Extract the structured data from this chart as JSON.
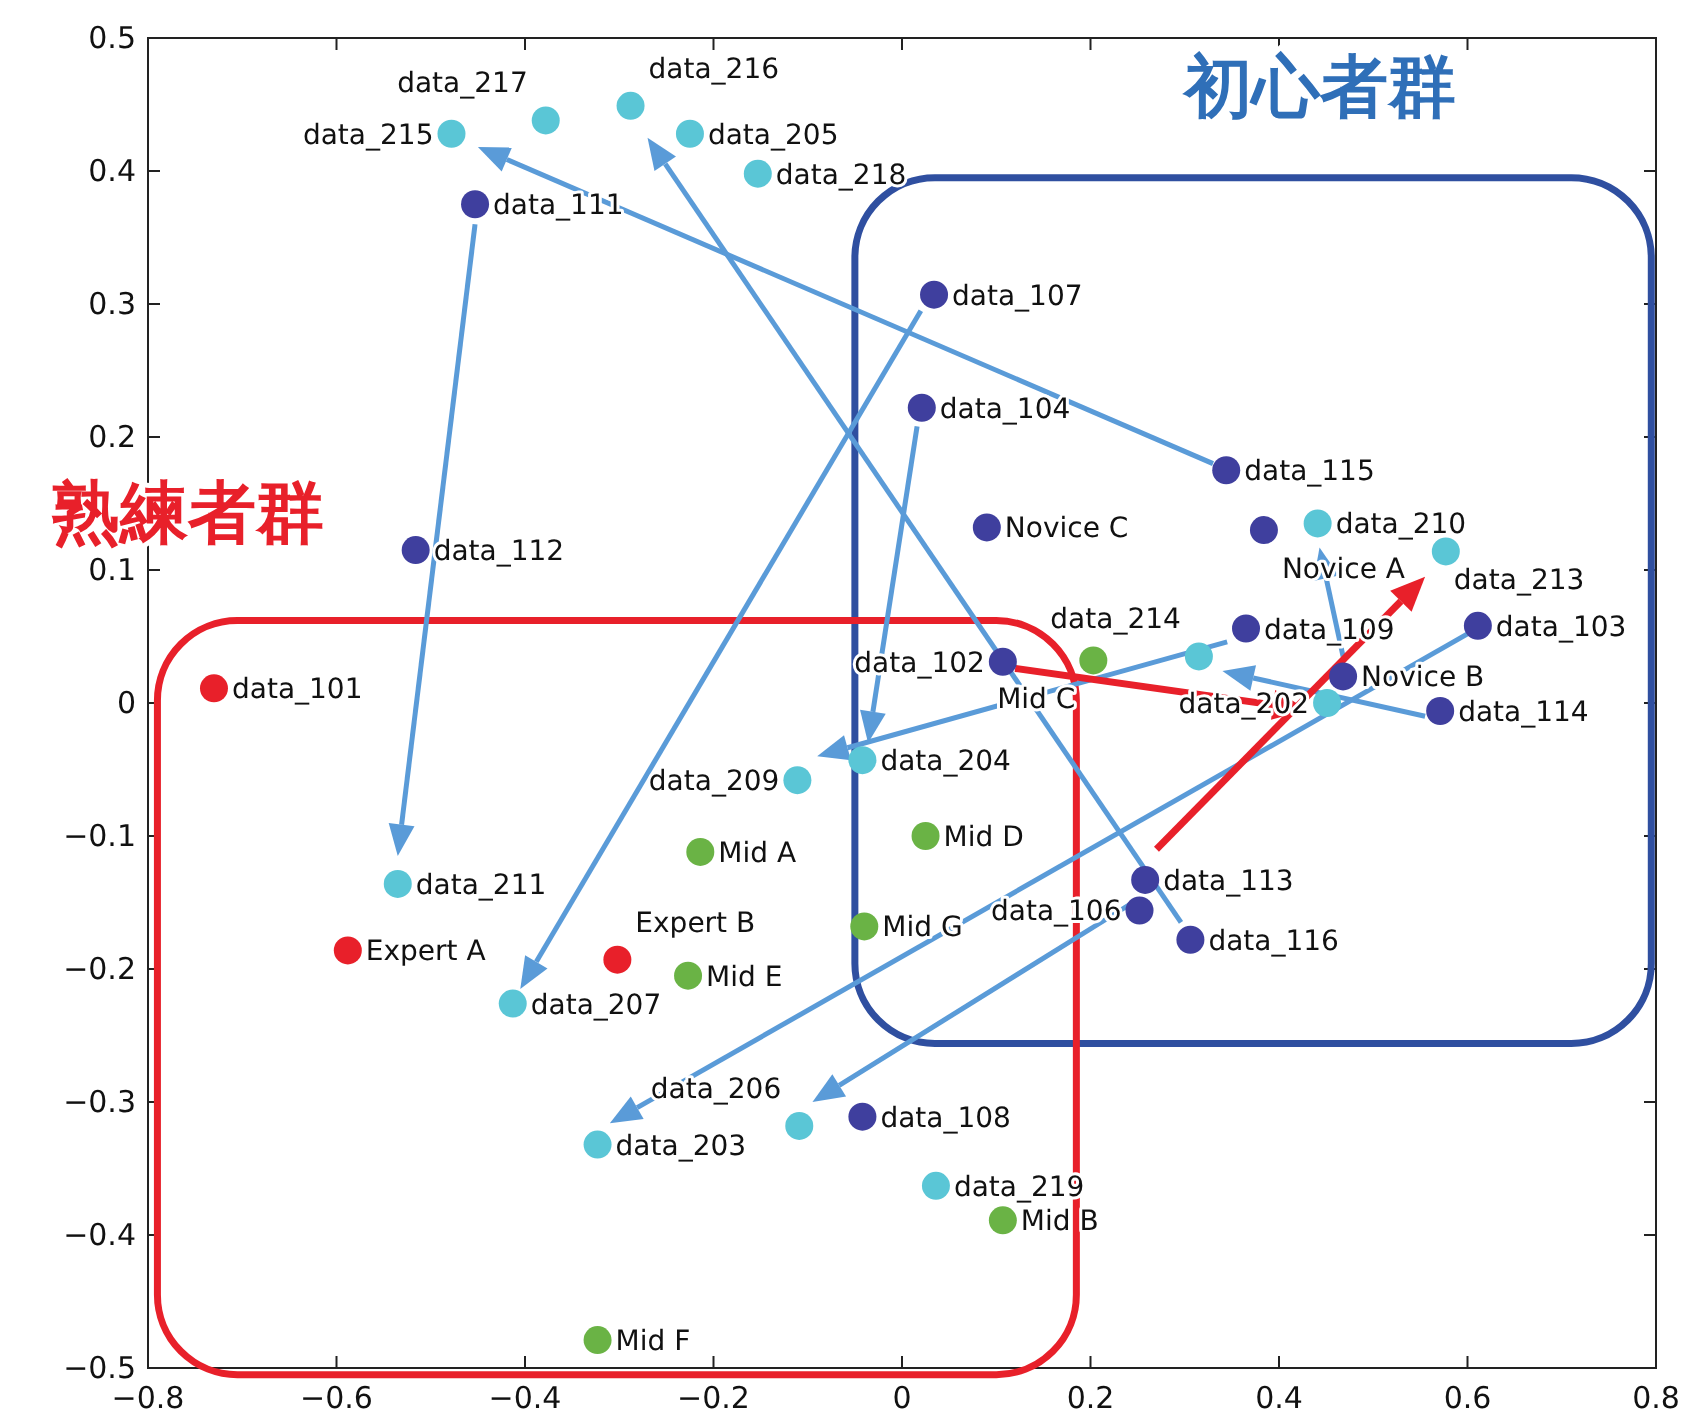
{
  "chart_data": {
    "type": "scatter",
    "xlim": [
      -0.8,
      0.8
    ],
    "ylim": [
      -0.5,
      0.5
    ],
    "xticks": [
      -0.8,
      -0.6,
      -0.4,
      -0.2,
      0,
      0.2,
      0.4,
      0.6,
      0.8
    ],
    "yticks": [
      -0.5,
      -0.4,
      -0.3,
      -0.2,
      -0.1,
      0,
      0.1,
      0.2,
      0.3,
      0.4,
      0.5
    ],
    "grid": false,
    "marker": "circle",
    "series": [
      {
        "color": "#e8202a",
        "x": [
          -0.73,
          -0.588,
          -0.302
        ],
        "values": [
          0.011,
          -0.186,
          -0.193
        ]
      },
      {
        "color": "#3f3f9e",
        "x": [
          -0.453,
          0.034,
          0.021,
          0.344,
          0.09,
          0.384,
          -0.516,
          0.365,
          0.611,
          0.107,
          0.468,
          0.571,
          0.258,
          0.252,
          0.306,
          -0.042
        ],
        "values": [
          0.375,
          0.307,
          0.222,
          0.175,
          0.132,
          0.13,
          0.115,
          0.056,
          0.058,
          0.031,
          0.02,
          -0.006,
          -0.133,
          -0.156,
          -0.178,
          -0.311
        ]
      },
      {
        "color": "#5ac6d6",
        "x": [
          -0.478,
          -0.378,
          -0.288,
          -0.225,
          -0.153,
          0.441,
          0.577,
          0.315,
          0.451,
          -0.042,
          -0.111,
          -0.535,
          -0.413,
          -0.323,
          -0.109,
          0.036
        ],
        "values": [
          0.428,
          0.438,
          0.449,
          0.428,
          0.398,
          0.135,
          0.114,
          0.035,
          0.0,
          -0.043,
          -0.058,
          -0.136,
          -0.226,
          -0.332,
          -0.318,
          -0.363
        ]
      },
      {
        "color": "#6ab345",
        "x": [
          0.203,
          0.025,
          -0.214,
          -0.04,
          -0.227,
          0.107,
          -0.323
        ],
        "values": [
          0.032,
          -0.1,
          -0.112,
          -0.168,
          -0.205,
          -0.389,
          -0.479
        ]
      }
    ],
    "annotations": [
      "初心者群",
      "熟練者群",
      {
        "text": "data_101",
        "x": -0.73,
        "y": 0.011
      },
      {
        "text": "Expert A",
        "x": -0.588,
        "y": -0.186
      },
      {
        "text": "Expert B",
        "x": -0.302,
        "y": -0.193
      },
      {
        "text": "data_111",
        "x": -0.453,
        "y": 0.375
      },
      {
        "text": "data_107",
        "x": 0.034,
        "y": 0.307
      },
      {
        "text": "data_104",
        "x": 0.021,
        "y": 0.222
      },
      {
        "text": "data_115",
        "x": 0.344,
        "y": 0.175
      },
      {
        "text": "Novice C",
        "x": 0.09,
        "y": 0.132
      },
      {
        "text": "Novice A",
        "x": 0.384,
        "y": 0.13
      },
      {
        "text": "data_112",
        "x": -0.516,
        "y": 0.115
      },
      {
        "text": "data_109",
        "x": 0.365,
        "y": 0.056
      },
      {
        "text": "data_103",
        "x": 0.611,
        "y": 0.058
      },
      {
        "text": "data_102",
        "x": 0.107,
        "y": 0.031
      },
      {
        "text": "Novice B",
        "x": 0.468,
        "y": 0.02
      },
      {
        "text": "data_114",
        "x": 0.571,
        "y": -0.006
      },
      {
        "text": "data_113",
        "x": 0.258,
        "y": -0.133
      },
      {
        "text": "data_106",
        "x": 0.252,
        "y": -0.156
      },
      {
        "text": "data_116",
        "x": 0.306,
        "y": -0.178
      },
      {
        "text": "data_108",
        "x": -0.042,
        "y": -0.311
      },
      {
        "text": "data_215",
        "x": -0.478,
        "y": 0.428
      },
      {
        "text": "data_217",
        "x": -0.378,
        "y": 0.438
      },
      {
        "text": "data_216",
        "x": -0.288,
        "y": 0.449
      },
      {
        "text": "data_205",
        "x": -0.225,
        "y": 0.428
      },
      {
        "text": "data_218",
        "x": -0.153,
        "y": 0.398
      },
      {
        "text": "data_210",
        "x": 0.441,
        "y": 0.135
      },
      {
        "text": "data_213",
        "x": 0.577,
        "y": 0.114
      },
      {
        "text": "data_214",
        "x": 0.315,
        "y": 0.035
      },
      {
        "text": "data_202",
        "x": 0.451,
        "y": 0.0
      },
      {
        "text": "data_204",
        "x": -0.042,
        "y": -0.043
      },
      {
        "text": "data_209",
        "x": -0.111,
        "y": -0.058
      },
      {
        "text": "data_211",
        "x": -0.535,
        "y": -0.136
      },
      {
        "text": "data_207",
        "x": -0.413,
        "y": -0.226
      },
      {
        "text": "data_203",
        "x": -0.323,
        "y": -0.332
      },
      {
        "text": "data_206",
        "x": -0.109,
        "y": -0.318
      },
      {
        "text": "data_219",
        "x": 0.036,
        "y": -0.363
      },
      {
        "text": "Mid C",
        "x": 0.203,
        "y": 0.032
      },
      {
        "text": "Mid D",
        "x": 0.025,
        "y": -0.1
      },
      {
        "text": "Mid A",
        "x": -0.214,
        "y": -0.112
      },
      {
        "text": "Mid G",
        "x": -0.04,
        "y": -0.168
      },
      {
        "text": "Mid E",
        "x": -0.227,
        "y": -0.205
      },
      {
        "text": "Mid B",
        "x": 0.107,
        "y": -0.389
      },
      {
        "text": "Mid F",
        "x": -0.323,
        "y": -0.479
      }
    ]
  }
}
